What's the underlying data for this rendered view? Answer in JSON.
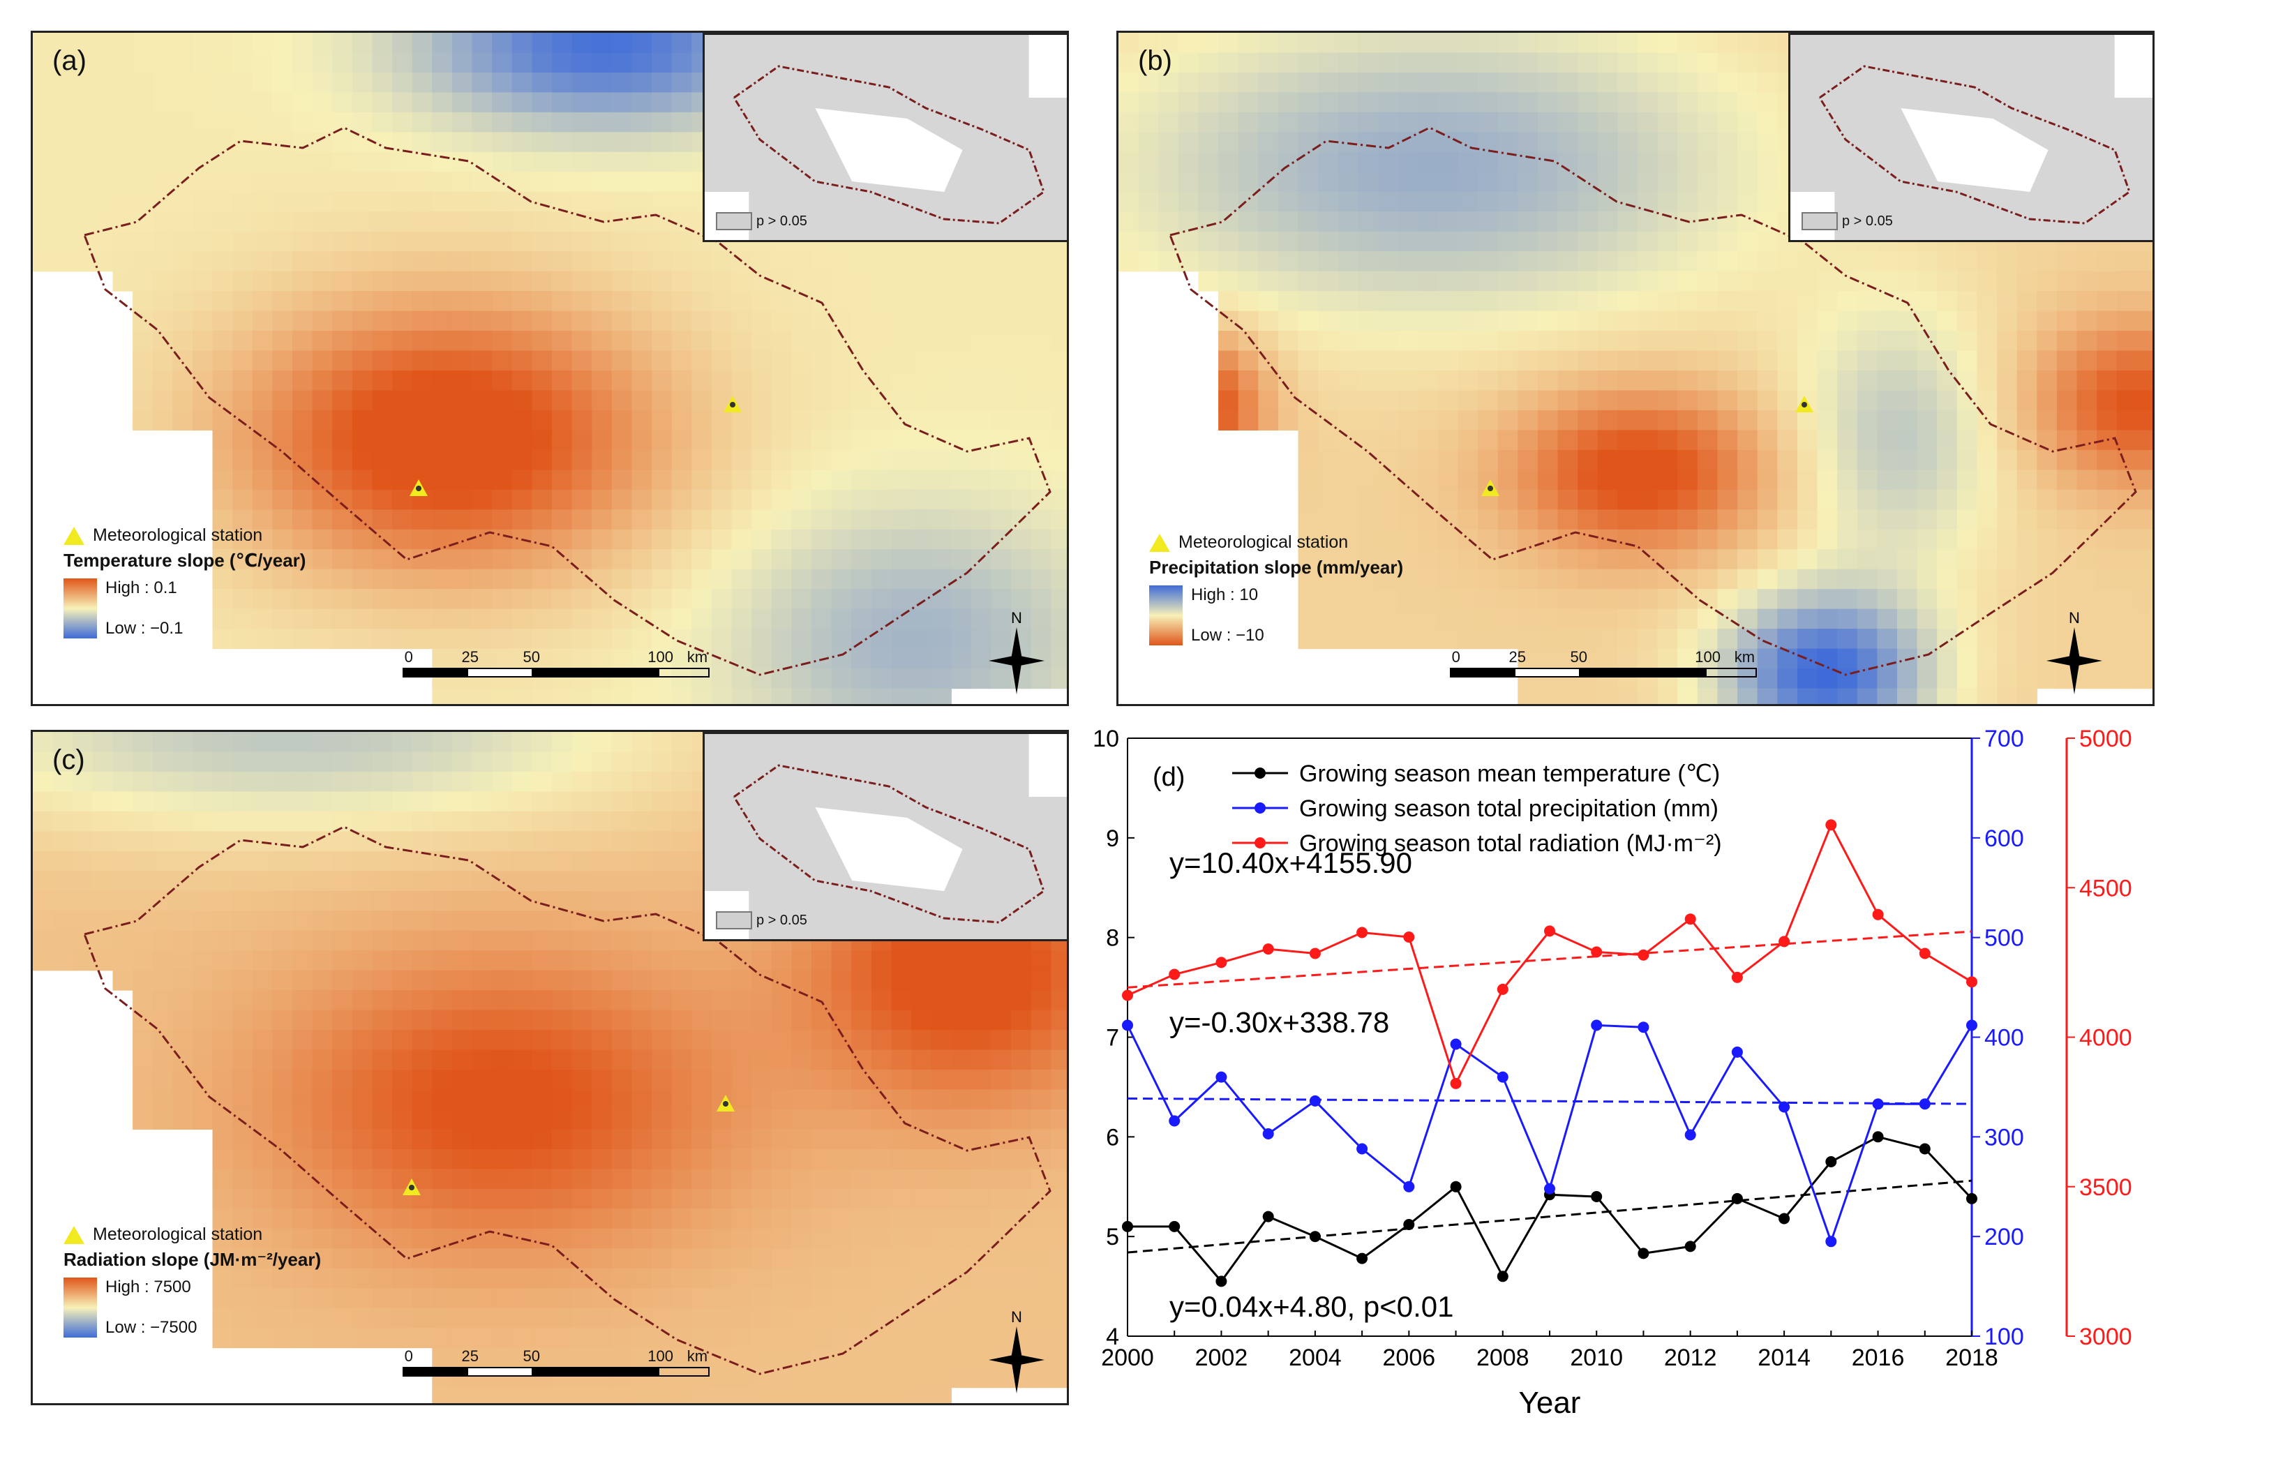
{
  "panels": {
    "a": {
      "label": "(a)",
      "legend_station": "Meteorological station",
      "legend_title": "Temperature slope (℃/year)",
      "high": "High : 0.1",
      "low": "Low : −0.1",
      "inset_key": "p > 0.05",
      "scale_ticks": [
        "0",
        "25",
        "50",
        "100"
      ],
      "scale_unit": "km",
      "north": "N"
    },
    "b": {
      "label": "(b)",
      "legend_station": "Meteorological station",
      "legend_title": "Precipitation slope (mm/year)",
      "high": "High : 10",
      "low": "Low : −10",
      "inset_key": "p > 0.05",
      "scale_ticks": [
        "0",
        "25",
        "50",
        "100"
      ],
      "scale_unit": "km",
      "north": "N"
    },
    "c": {
      "label": "(c)",
      "legend_station": "Meteorological station",
      "legend_title": "Radiation slope (JM·m⁻²/year)",
      "high": "High : 7500",
      "low": "Low : −7500",
      "inset_key": "p > 0.05",
      "scale_ticks": [
        "0",
        "25",
        "50",
        "100"
      ],
      "scale_unit": "km",
      "north": "N"
    }
  },
  "colors": {
    "warm": "#e0551a",
    "cool": "#3e6bd8",
    "neutral": "#f7f1b8",
    "temperature": "#000000",
    "precipitation": "#1a1aff",
    "radiation": "#ff1a1a"
  },
  "chart_data": {
    "type": "line",
    "panel_label": "(d)",
    "xlabel": "Year",
    "x": [
      2000,
      2001,
      2002,
      2003,
      2004,
      2005,
      2006,
      2007,
      2008,
      2009,
      2010,
      2011,
      2012,
      2013,
      2014,
      2015,
      2016,
      2017,
      2018
    ],
    "x_ticks": [
      "2000",
      "2002",
      "2004",
      "2006",
      "2008",
      "2010",
      "2012",
      "2014",
      "2016",
      "2018"
    ],
    "axes": {
      "left": {
        "range": [
          4,
          10
        ],
        "ticks": [
          "4",
          "5",
          "6",
          "7",
          "8",
          "9",
          "10"
        ]
      },
      "right_blue": {
        "range": [
          100,
          700
        ],
        "ticks": [
          "100",
          "200",
          "300",
          "400",
          "500",
          "600",
          "700"
        ]
      },
      "right_red": {
        "range": [
          3000,
          5000
        ],
        "ticks": [
          "3000",
          "3500",
          "4000",
          "4500",
          "5000"
        ]
      }
    },
    "series": [
      {
        "name": "Growing season mean temperature (℃)",
        "axis": "left",
        "values": [
          5.1,
          5.1,
          4.55,
          5.2,
          5.0,
          4.78,
          5.12,
          5.5,
          4.6,
          5.42,
          5.4,
          4.83,
          4.9,
          5.38,
          5.18,
          5.75,
          6.0,
          5.88,
          5.38
        ],
        "trend": {
          "slope": 0.04,
          "intercept": 4.8
        },
        "equation": "y=0.04x+4.80, p<0.01"
      },
      {
        "name": "Growing season total precipitation (mm)",
        "axis": "right_blue",
        "values": [
          412,
          316,
          360,
          303,
          336,
          288,
          250,
          393,
          360,
          248,
          412,
          410,
          302,
          385,
          330,
          195,
          333,
          333,
          412
        ],
        "trend": {
          "slope": -0.3,
          "intercept": 338.78
        },
        "equation": "y=-0.30x+338.78"
      },
      {
        "name": "Growing season total radiation (MJ·m⁻²)",
        "axis": "right_red",
        "values": [
          4140,
          4210,
          4250,
          4295,
          4280,
          4350,
          4335,
          3845,
          4160,
          4355,
          4285,
          4275,
          4395,
          4200,
          4320,
          4710,
          4410,
          4280,
          4185
        ],
        "trend": {
          "slope": 10.4,
          "intercept": 4155.9
        },
        "equation": "y=10.40x+4155.90"
      }
    ]
  }
}
